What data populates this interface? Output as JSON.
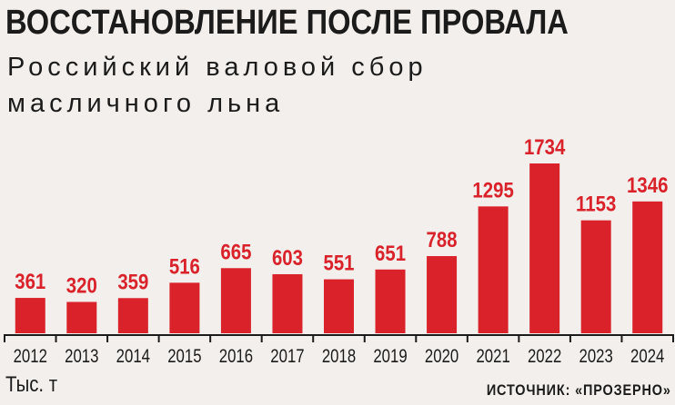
{
  "chart_data": {
    "type": "bar",
    "title": "ВОССТАНОВЛЕНИЕ ПОСЛЕ ПРОВАЛА",
    "subtitle": [
      "Российский валовой сбор",
      "масличного льна"
    ],
    "unit": "Тыс. т",
    "source": "ИСТОЧНИК: «ПРОЗЕРНО»",
    "categories": [
      "2012",
      "2013",
      "2014",
      "2015",
      "2016",
      "2017",
      "2018",
      "2019",
      "2020",
      "2021",
      "2022",
      "2023",
      "2024"
    ],
    "values": [
      361,
      320,
      359,
      516,
      665,
      603,
      551,
      651,
      788,
      1295,
      1734,
      1153,
      1346
    ],
    "ylim": [
      0,
      1734
    ],
    "grid": false,
    "colors": {
      "bar": "#d9222a",
      "label": "#d9222a",
      "text": "#1b1b1b",
      "background": "#f3efec"
    }
  }
}
